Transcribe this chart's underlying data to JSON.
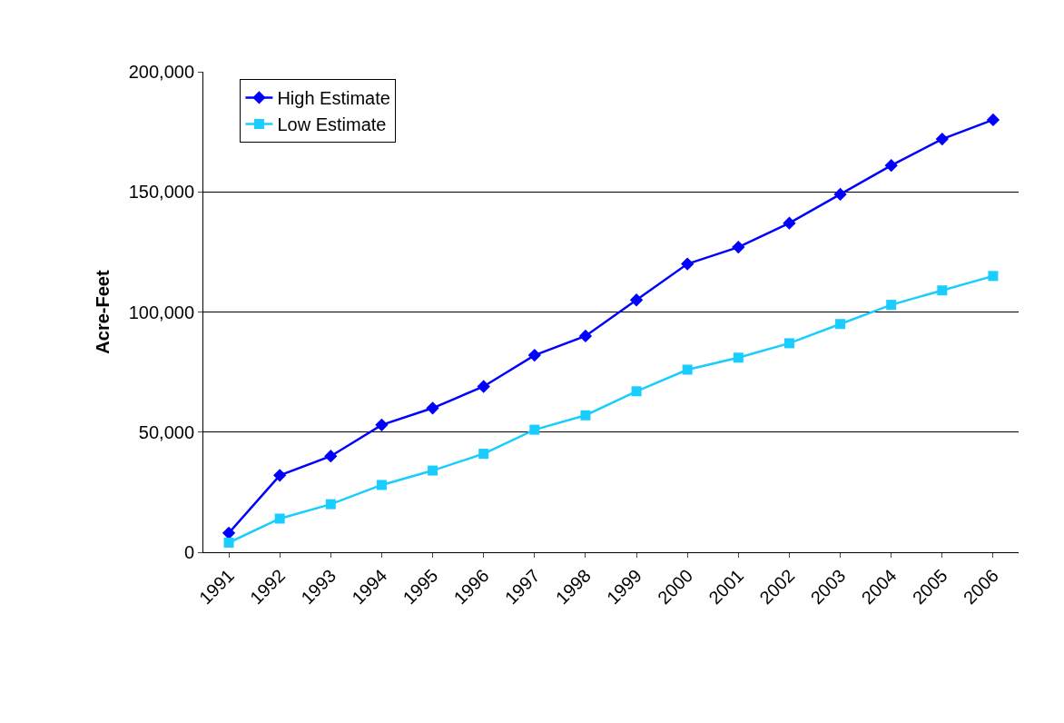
{
  "chart_data": {
    "type": "line",
    "ylabel": "Acre-Feet",
    "categories": [
      "1991",
      "1992",
      "1993",
      "1994",
      "1995",
      "1996",
      "1997",
      "1998",
      "1999",
      "2000",
      "2001",
      "2002",
      "2003",
      "2004",
      "2005",
      "2006"
    ],
    "series": [
      {
        "name": "High Estimate",
        "color": "#0000ff",
        "marker": "diamond",
        "values": [
          8000,
          32000,
          40000,
          53000,
          60000,
          69000,
          82000,
          90000,
          105000,
          120000,
          127000,
          137000,
          149000,
          161000,
          172000,
          180000
        ]
      },
      {
        "name": "Low Estimate",
        "color": "#19cdff",
        "marker": "square",
        "values": [
          4000,
          14000,
          20000,
          28000,
          34000,
          41000,
          51000,
          57000,
          67000,
          76000,
          81000,
          87000,
          95000,
          103000,
          109000,
          115000
        ]
      }
    ],
    "ylim": [
      0,
      200000
    ],
    "yticks": [
      {
        "value": 0,
        "label": "0"
      },
      {
        "value": 50000,
        "label": "50,000"
      },
      {
        "value": 100000,
        "label": "100,000"
      },
      {
        "value": 150000,
        "label": "150,000"
      },
      {
        "value": 200000,
        "label": "200,000"
      }
    ],
    "grid": "y",
    "legend": "top left",
    "line_style": "solid"
  }
}
